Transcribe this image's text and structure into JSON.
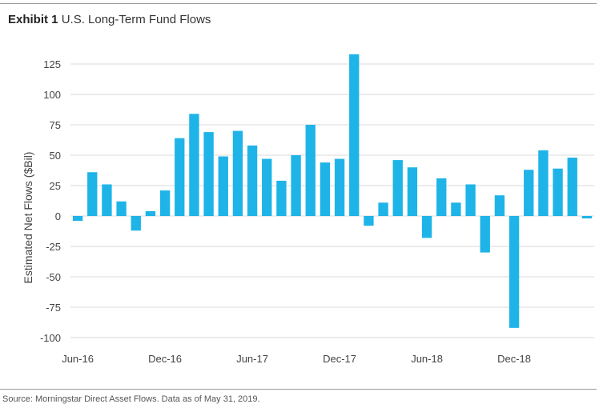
{
  "header": {
    "exhibit_label": "Exhibit 1",
    "title": "U.S. Long-Term Fund Flows"
  },
  "footer": {
    "source": "Source: Morningstar Direct Asset Flows. Data as of May 31, 2019."
  },
  "chart_data": {
    "type": "bar",
    "ylabel": "Estimated Net Flows ($Bil)",
    "xlabel": "",
    "ylim": [
      -100,
      125
    ],
    "yticks": [
      125,
      100,
      75,
      50,
      25,
      0,
      -25,
      -50,
      -75,
      -100
    ],
    "grid": true,
    "categories": [
      "Jun-16",
      "Jul-16",
      "Aug-16",
      "Sep-16",
      "Oct-16",
      "Nov-16",
      "Dec-16",
      "Jan-17",
      "Feb-17",
      "Mar-17",
      "Apr-17",
      "May-17",
      "Jun-17",
      "Jul-17",
      "Aug-17",
      "Sep-17",
      "Oct-17",
      "Nov-17",
      "Dec-17",
      "Jan-18",
      "Feb-18",
      "Mar-18",
      "Apr-18",
      "May-18",
      "Jun-18",
      "Jul-18",
      "Aug-18",
      "Sep-18",
      "Oct-18",
      "Nov-18",
      "Dec-18",
      "Jan-19",
      "Feb-19",
      "Mar-19",
      "Apr-19",
      "May-19"
    ],
    "x_tick_labels": [
      "Jun-16",
      "Dec-16",
      "Jun-17",
      "Dec-17",
      "Jun-18",
      "Dec-18"
    ],
    "values": [
      -4,
      36,
      26,
      12,
      -12,
      4,
      21,
      64,
      84,
      69,
      49,
      70,
      58,
      47,
      29,
      50,
      75,
      44,
      47,
      133,
      -8,
      11,
      46,
      40,
      -18,
      31,
      11,
      26,
      -30,
      17,
      -92,
      38,
      54,
      39,
      48,
      -2
    ],
    "bar_color": "#1eb4e8",
    "grid_color": "#d9d9d9"
  }
}
